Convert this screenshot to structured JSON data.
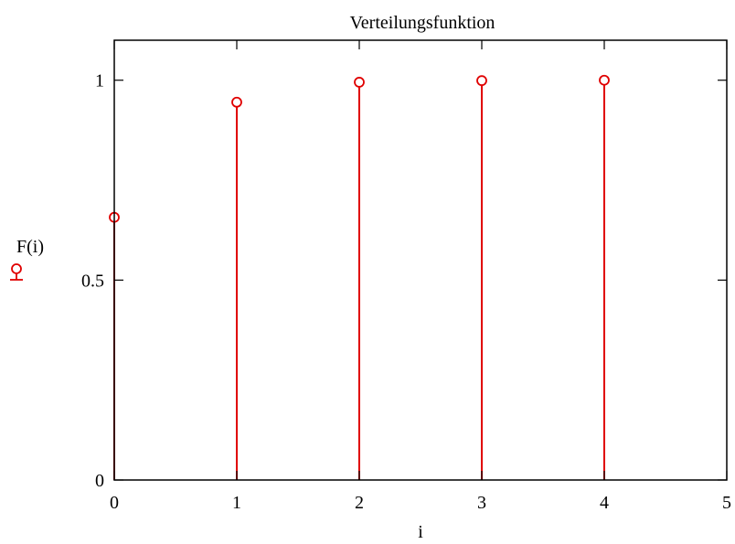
{
  "chart_data": {
    "type": "stem",
    "title": "Verteilungsfunktion",
    "xlabel": "i",
    "ylabel": "F(i)",
    "legend_position": "left",
    "series": [
      {
        "name": "F(i)",
        "color": "#e00000",
        "x": [
          0,
          1,
          2,
          3,
          4
        ],
        "values": [
          0.657,
          0.945,
          0.995,
          0.999,
          1.0
        ]
      }
    ],
    "xlim": [
      0,
      5
    ],
    "ylim": [
      0,
      1.1
    ],
    "xticks": [
      0,
      1,
      2,
      3,
      4,
      5
    ],
    "xtick_labels": [
      "0",
      "1",
      "2",
      "3",
      "4",
      "5"
    ],
    "yticks": [
      0,
      0.5,
      1
    ],
    "ytick_labels": [
      "0",
      "0.5",
      "1"
    ],
    "grid": false
  }
}
